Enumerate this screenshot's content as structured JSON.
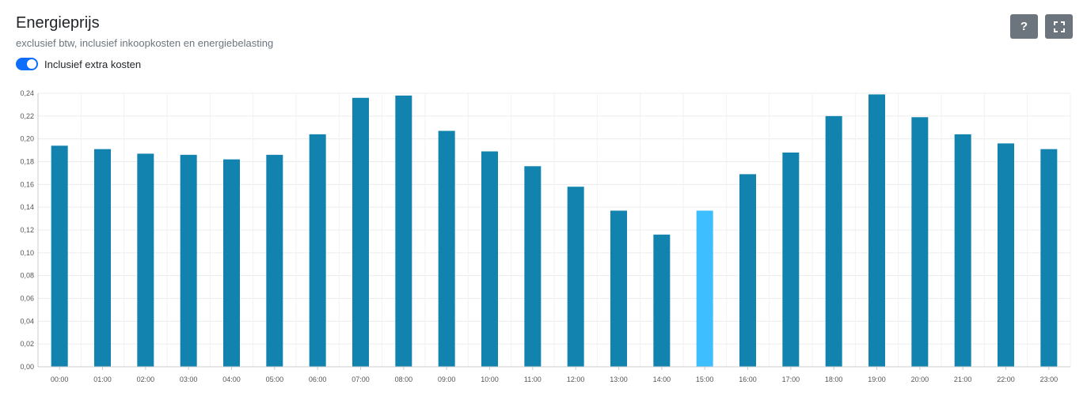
{
  "header": {
    "title": "Energieprijs",
    "subtitle": "exclusief btw, inclusief inkoopkosten en energiebelasting",
    "toggle_label": "Inclusief extra kosten",
    "toggle_on": true
  },
  "buttons": {
    "help_label": "?",
    "help_icon": "question-icon",
    "fullscreen_icon": "expand-icon"
  },
  "colors": {
    "bar": "#1183ae",
    "highlight": "#3dbeff",
    "toggle": "#0d6efd",
    "button": "#6c757d"
  },
  "chart_data": {
    "type": "bar",
    "categories": [
      "00:00",
      "01:00",
      "02:00",
      "03:00",
      "04:00",
      "05:00",
      "06:00",
      "07:00",
      "08:00",
      "09:00",
      "10:00",
      "11:00",
      "12:00",
      "13:00",
      "14:00",
      "15:00",
      "16:00",
      "17:00",
      "18:00",
      "19:00",
      "20:00",
      "21:00",
      "22:00",
      "23:00"
    ],
    "values": [
      0.194,
      0.191,
      0.187,
      0.186,
      0.182,
      0.186,
      0.204,
      0.236,
      0.238,
      0.207,
      0.189,
      0.176,
      0.158,
      0.137,
      0.116,
      0.137,
      0.169,
      0.188,
      0.22,
      0.239,
      0.219,
      0.204,
      0.196,
      0.191
    ],
    "highlight_category": "15:00",
    "ylim": [
      0,
      0.24
    ],
    "yticks": [
      "0,00",
      "0,02",
      "0,04",
      "0,06",
      "0,08",
      "0,10",
      "0,12",
      "0,14",
      "0,16",
      "0,18",
      "0,20",
      "0,22",
      "0,24"
    ],
    "grid": true,
    "title": "",
    "xlabel": "",
    "ylabel": ""
  }
}
